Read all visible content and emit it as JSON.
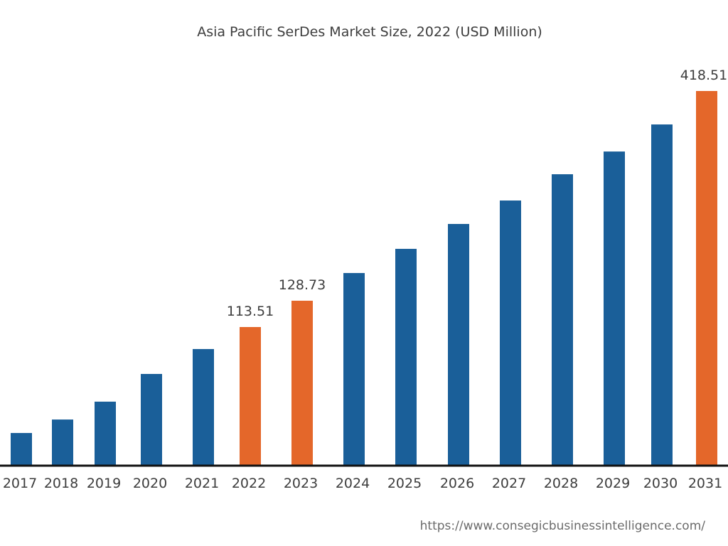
{
  "chart_data": {
    "type": "bar",
    "title": "Asia Pacific SerDes Market Size, 2022 (USD Million)",
    "xlabel": "",
    "ylabel": "",
    "categories": [
      "2017",
      "2018",
      "2019",
      "2020",
      "2021",
      "2022",
      "2023",
      "2024",
      "2025",
      "2026",
      "2027",
      "2028",
      "2029",
      "2030",
      "2031"
    ],
    "values": [
      26.3,
      37.4,
      52.1,
      74.9,
      95.4,
      113.51,
      128.73,
      167.0,
      200.4,
      234.8,
      267.2,
      303.5,
      334.9,
      372.3,
      418.51
    ],
    "data_labels": {
      "2022": "113.51",
      "2023": "128.73",
      "2031": "418.51"
    },
    "highlighted": [
      "2022",
      "2023",
      "2031"
    ],
    "colors": {
      "default": "#1a5f99",
      "highlight": "#e4672a",
      "axis": "#111111"
    },
    "grid": false,
    "legend": "none"
  },
  "source": "https://www.consegicbusinessintelligence.com/"
}
